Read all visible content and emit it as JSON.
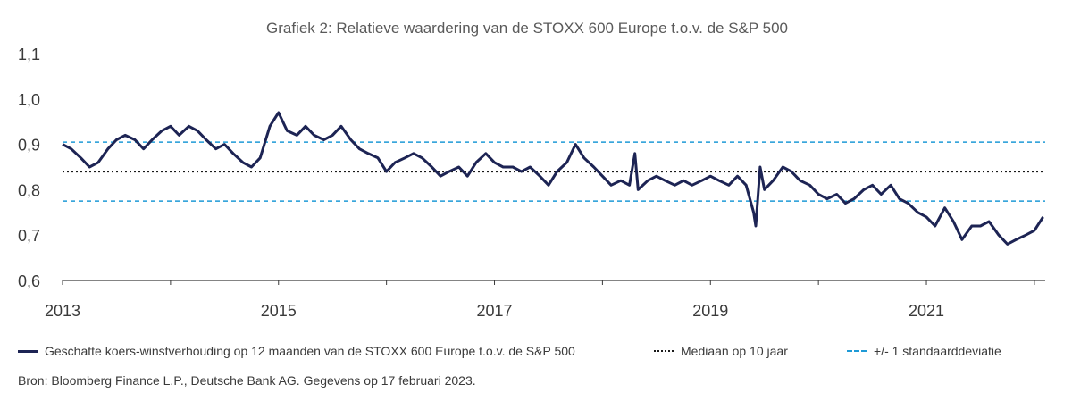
{
  "chart_data": {
    "type": "line",
    "title": "Grafiek 2: Relatieve waardering van de STOXX 600 Europe t.o.v. de S&P 500",
    "xlabel": "",
    "ylabel": "",
    "xlim": [
      2013.0,
      2022.1
    ],
    "ylim": [
      0.6,
      1.1
    ],
    "x_ticks": [
      2013,
      2015,
      2017,
      2019,
      2021
    ],
    "x_tick_labels": [
      "2013",
      "2015",
      "2017",
      "2019",
      "2021"
    ],
    "y_ticks": [
      0.6,
      0.7,
      0.8,
      0.9,
      1.0,
      1.1
    ],
    "y_tick_labels": [
      "0,6",
      "0,7",
      "0,8",
      "0,9",
      "1,0",
      "1,1"
    ],
    "grid": false,
    "legend_position": "bottom",
    "series": [
      {
        "name": "Geschatte koers-winstverhouding op 12 maanden van de STOXX 600 Europe t.o.v. de S&P 500",
        "color": "#1d2454",
        "style": "solid",
        "x": [
          2013.0,
          2013.08,
          2013.17,
          2013.25,
          2013.33,
          2013.42,
          2013.5,
          2013.58,
          2013.67,
          2013.75,
          2013.83,
          2013.92,
          2014.0,
          2014.08,
          2014.17,
          2014.25,
          2014.33,
          2014.42,
          2014.5,
          2014.58,
          2014.67,
          2014.75,
          2014.83,
          2014.92,
          2015.0,
          2015.08,
          2015.17,
          2015.25,
          2015.33,
          2015.42,
          2015.5,
          2015.58,
          2015.67,
          2015.75,
          2015.83,
          2015.92,
          2016.0,
          2016.08,
          2016.17,
          2016.25,
          2016.33,
          2016.42,
          2016.5,
          2016.58,
          2016.67,
          2016.75,
          2016.83,
          2016.92,
          2017.0,
          2017.08,
          2017.17,
          2017.25,
          2017.33,
          2017.42,
          2017.5,
          2017.58,
          2017.67,
          2017.75,
          2017.83,
          2017.92,
          2018.0,
          2018.08,
          2018.17,
          2018.25,
          2018.3,
          2018.33,
          2018.42,
          2018.5,
          2018.58,
          2018.67,
          2018.75,
          2018.83,
          2018.92,
          2019.0,
          2019.08,
          2019.17,
          2019.25,
          2019.33,
          2019.4,
          2019.42,
          2019.46,
          2019.5,
          2019.58,
          2019.67,
          2019.75,
          2019.83,
          2019.92,
          2020.0,
          2020.08,
          2020.17,
          2020.25,
          2020.33,
          2020.42,
          2020.5,
          2020.58,
          2020.67,
          2020.75,
          2020.83,
          2020.92,
          2021.0,
          2021.08,
          2021.17,
          2021.25,
          2021.33,
          2021.42,
          2021.5,
          2021.58,
          2021.67,
          2021.75,
          2021.83,
          2021.92,
          2022.0,
          2022.08
        ],
        "y": [
          0.9,
          0.89,
          0.87,
          0.85,
          0.86,
          0.89,
          0.91,
          0.92,
          0.91,
          0.89,
          0.91,
          0.93,
          0.94,
          0.92,
          0.94,
          0.93,
          0.91,
          0.89,
          0.9,
          0.88,
          0.86,
          0.85,
          0.87,
          0.94,
          0.97,
          0.93,
          0.92,
          0.94,
          0.92,
          0.91,
          0.92,
          0.94,
          0.91,
          0.89,
          0.88,
          0.87,
          0.84,
          0.86,
          0.87,
          0.88,
          0.87,
          0.85,
          0.83,
          0.84,
          0.85,
          0.83,
          0.86,
          0.88,
          0.86,
          0.85,
          0.85,
          0.84,
          0.85,
          0.83,
          0.81,
          0.84,
          0.86,
          0.9,
          0.87,
          0.85,
          0.83,
          0.81,
          0.82,
          0.81,
          0.88,
          0.8,
          0.82,
          0.83,
          0.82,
          0.81,
          0.82,
          0.81,
          0.82,
          0.83,
          0.82,
          0.81,
          0.83,
          0.81,
          0.75,
          0.72,
          0.85,
          0.8,
          0.82,
          0.85,
          0.84,
          0.82,
          0.81,
          0.79,
          0.78,
          0.79,
          0.77,
          0.78,
          0.8,
          0.81,
          0.79,
          0.81,
          0.78,
          0.77,
          0.75,
          0.74,
          0.72,
          0.76,
          0.73,
          0.69,
          0.72,
          0.72,
          0.73,
          0.7,
          0.68,
          0.69,
          0.7,
          0.71,
          0.74
        ]
      },
      {
        "name": "Mediaan op 10 jaar",
        "color": "#1a1a1a",
        "style": "dotted",
        "x": [
          2013.0,
          2022.1
        ],
        "y": [
          0.84,
          0.84
        ]
      },
      {
        "name": "+/- 1 standaarddeviatie",
        "color": "#1f9ad6",
        "style": "dashed",
        "x": [
          2013.0,
          2022.1
        ],
        "y": [
          0.905,
          0.905
        ]
      },
      {
        "name": "",
        "color": "#1f9ad6",
        "style": "dashed",
        "x": [
          2013.0,
          2022.1
        ],
        "y": [
          0.775,
          0.775
        ]
      }
    ],
    "source": "Bron: Bloomberg Finance L.P., Deutsche Bank AG. Gegevens op 17 februari 2023."
  }
}
